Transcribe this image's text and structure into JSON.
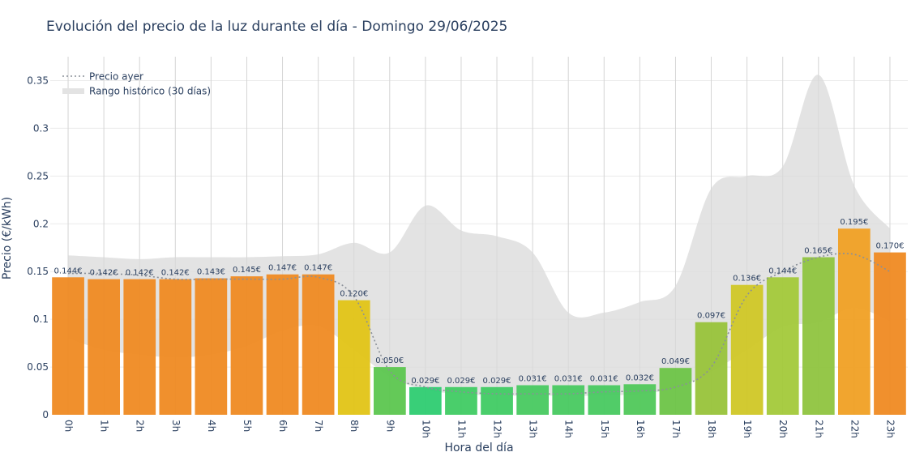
{
  "chart_data": {
    "type": "bar",
    "title": "Evolución del precio de la luz durante el día - Domingo 29/06/2025",
    "xlabel": "Hora del día",
    "ylabel": "Precio (€/kWh)",
    "ylim": [
      0,
      0.375
    ],
    "yticks": [
      0,
      0.05,
      0.1,
      0.15,
      0.2,
      0.25,
      0.3,
      0.35
    ],
    "ytick_labels": [
      "0",
      "0.05",
      "0.1",
      "0.15",
      "0.2",
      "0.25",
      "0.3",
      "0.35"
    ],
    "categories": [
      "0h",
      "1h",
      "2h",
      "3h",
      "4h",
      "5h",
      "6h",
      "7h",
      "8h",
      "9h",
      "10h",
      "11h",
      "12h",
      "13h",
      "14h",
      "15h",
      "16h",
      "17h",
      "18h",
      "19h",
      "20h",
      "21h",
      "22h",
      "23h"
    ],
    "values": [
      0.144,
      0.142,
      0.142,
      0.142,
      0.143,
      0.145,
      0.147,
      0.147,
      0.12,
      0.05,
      0.029,
      0.029,
      0.029,
      0.031,
      0.031,
      0.031,
      0.032,
      0.049,
      0.097,
      0.136,
      0.144,
      0.165,
      0.195,
      0.17
    ],
    "value_labels": [
      "0.144€",
      "0.142€",
      "0.142€",
      "0.142€",
      "0.143€",
      "0.145€",
      "0.147€",
      "0.147€",
      "0.120€",
      "0.050€",
      "0.029€",
      "0.029€",
      "0.029€",
      "0.031€",
      "0.031€",
      "0.031€",
      "0.032€",
      "0.049€",
      "0.097€",
      "0.136€",
      "0.144€",
      "0.165€",
      "0.195€",
      "0.170€"
    ],
    "bar_colors": [
      "#ef8a22",
      "#ef8a22",
      "#ef8a22",
      "#ef8a22",
      "#ef8a22",
      "#ef8a22",
      "#ef8a22",
      "#ef8a22",
      "#e2c416",
      "#5cc64f",
      "#2ecc71",
      "#40cb63",
      "#40cb63",
      "#48c960",
      "#48c960",
      "#48c960",
      "#50c85a",
      "#6dc447",
      "#98c33a",
      "#d0c726",
      "#a3c93a",
      "#8fc43f",
      "#f0a024",
      "#ef8a22"
    ],
    "series": [
      {
        "name": "Precio ayer",
        "style": "dotted",
        "color": "#8a9099",
        "values": [
          0.148,
          0.148,
          0.146,
          0.142,
          0.142,
          0.142,
          0.142,
          0.144,
          0.124,
          0.046,
          0.029,
          0.024,
          0.022,
          0.022,
          0.022,
          0.024,
          0.025,
          0.029,
          0.05,
          0.125,
          0.15,
          0.165,
          0.168,
          0.15
        ]
      },
      {
        "name": "Rango histórico (30 días)",
        "style": "band",
        "color": "#d9d9d9",
        "upper": [
          0.167,
          0.165,
          0.163,
          0.165,
          0.165,
          0.165,
          0.166,
          0.168,
          0.18,
          0.17,
          0.219,
          0.193,
          0.187,
          0.17,
          0.107,
          0.107,
          0.118,
          0.135,
          0.237,
          0.25,
          0.26,
          0.356,
          0.24,
          0.195
        ],
        "lower": [
          0.08,
          0.068,
          0.063,
          0.06,
          0.063,
          0.072,
          0.088,
          0.093,
          0.068,
          0.04,
          0.026,
          0.022,
          0.02,
          0.02,
          0.02,
          0.02,
          0.022,
          0.028,
          0.045,
          0.068,
          0.092,
          0.097,
          0.112,
          0.098
        ]
      }
    ],
    "legend": {
      "position": "top-left",
      "items": [
        "Precio ayer",
        "Rango histórico (30 días)"
      ]
    },
    "grid": true
  }
}
